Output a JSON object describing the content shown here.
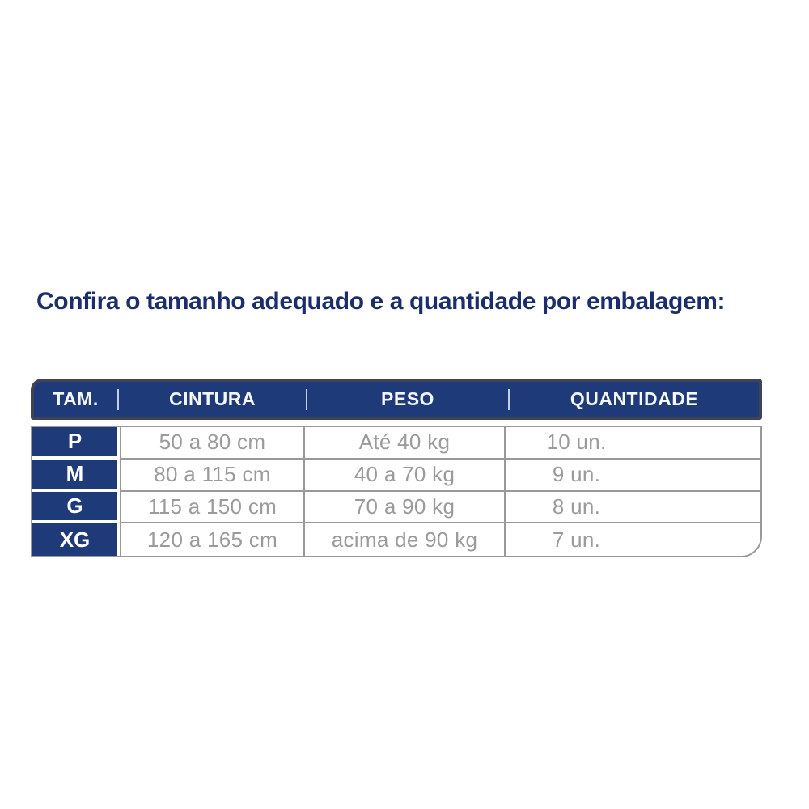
{
  "title": "Confira o tamanho adequado e a quantidade por embalagem:",
  "table": {
    "headers": [
      "TAM.",
      "CINTURA",
      "PESO",
      "QUANTIDADE"
    ],
    "rows": [
      {
        "size": "P",
        "cintura": "50 a 80 cm",
        "peso": "Até 40 kg",
        "quantidade": "10 un."
      },
      {
        "size": "M",
        "cintura": "80 a 115 cm",
        "peso": "40 a 70 kg",
        "quantidade": "9 un."
      },
      {
        "size": "G",
        "cintura": "115 a 150 cm",
        "peso": "70 a 90 kg",
        "quantidade": "8 un."
      },
      {
        "size": "XG",
        "cintura": "120 a 165 cm",
        "peso": "acima de 90 kg",
        "quantidade": "7 un."
      }
    ]
  },
  "colors": {
    "navy": "#1e3a78",
    "title_text": "#1b2e6b",
    "header_border": "#3e4454",
    "grid_line": "#97999b",
    "data_text": "#9b9b9b",
    "header_text": "#f4f6fa"
  }
}
